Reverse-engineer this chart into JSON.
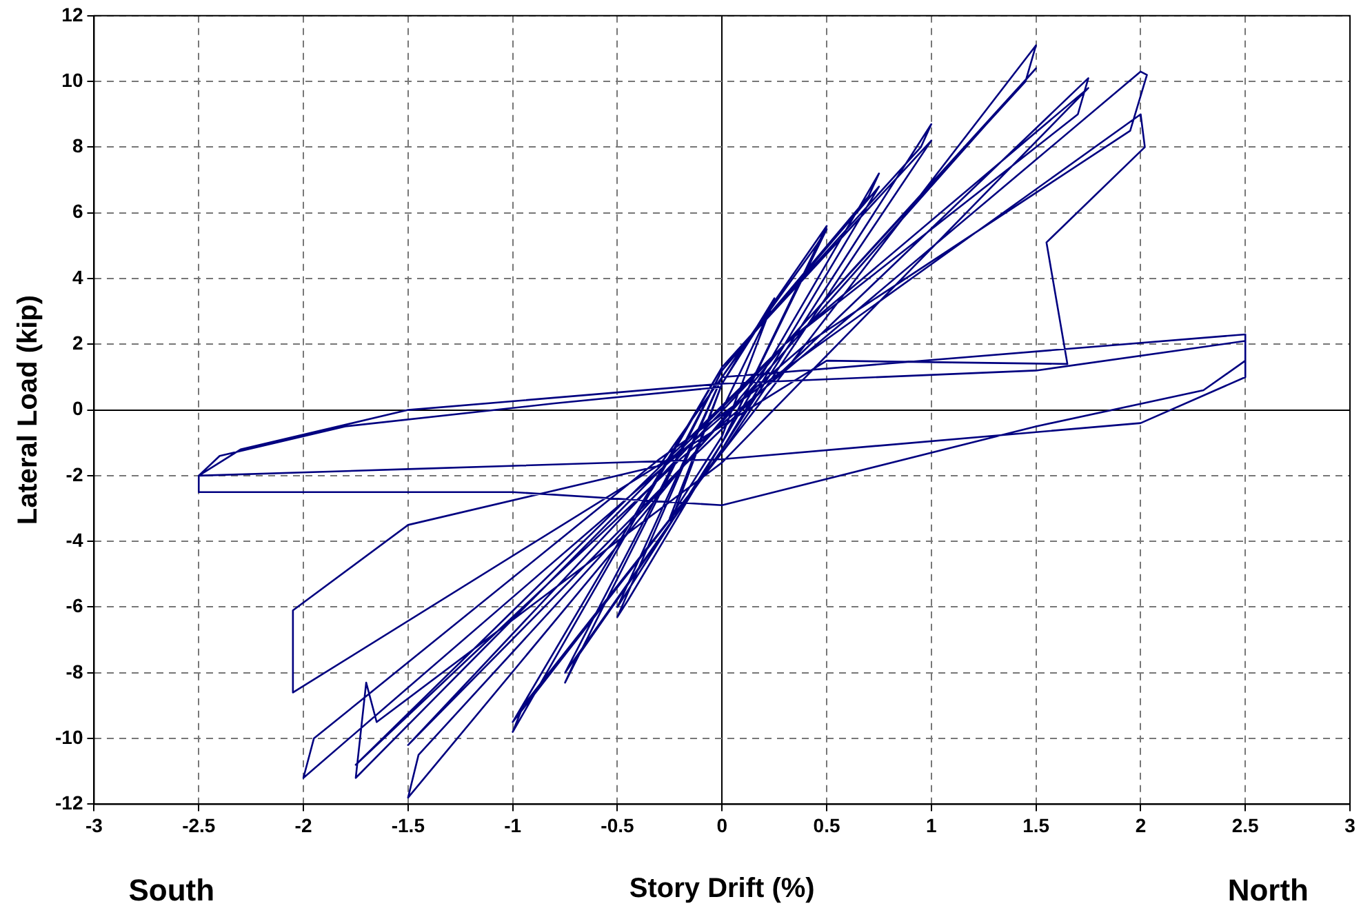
{
  "chart_data": {
    "type": "line",
    "xlabel": "Story Drift (%)",
    "ylabel": "Lateral Load (kip)",
    "annotations": [
      "South",
      "North"
    ],
    "xlim": [
      -3,
      3
    ],
    "xticks": [
      -3,
      -2.5,
      -2,
      -1.5,
      -1,
      -0.5,
      0,
      0.5,
      1,
      1.5,
      2,
      2.5,
      3
    ],
    "ylim": [
      -12,
      12
    ],
    "yticks": [
      -12,
      -10,
      -8,
      -6,
      -4,
      -2,
      0,
      2,
      4,
      6,
      8,
      10,
      12
    ],
    "grid": true,
    "marker": "none",
    "line_style": "solid",
    "legend": false,
    "series": [
      {
        "color": "#000080",
        "x": [
          0,
          0.25,
          0,
          -0.25,
          0,
          0.25,
          0,
          -0.25,
          0,
          0.5,
          0.45,
          0,
          -0.5,
          -0.45,
          0,
          0.5,
          0,
          -0.5,
          0,
          0.75,
          0.7,
          0,
          -0.75,
          -0.7,
          0,
          0.75,
          0,
          -0.75,
          0,
          1.0,
          0.95,
          0,
          -1.0,
          -0.95,
          0,
          1.0,
          0,
          -1.0,
          0,
          1.5,
          1.45,
          0.3,
          -1.5,
          -1.45,
          -0.2,
          1.5,
          0.3,
          -1.5,
          -0.2,
          1.75,
          1.7,
          0.3,
          -1.75,
          -1.7,
          -1.65,
          0,
          1.75,
          0.3,
          -1.75,
          -0.2,
          2.0,
          2.03,
          1.95,
          0.4,
          -2.0,
          -1.95,
          -0.3,
          2.0,
          2.02,
          1.55,
          1.65,
          0.5,
          -2.05,
          -2.05,
          -1.5,
          -0.3,
          0,
          2.5,
          2.5,
          2.3,
          1.5,
          0,
          -1,
          -2.5,
          -2.5,
          -2.3,
          -1.5,
          0,
          1.5,
          2.5,
          2.5,
          2.0,
          0,
          -1.5,
          -2.5,
          -2.4,
          -1.8,
          -0.8,
          0
        ],
        "values": [
          0,
          3.3,
          0.8,
          -3.3,
          -0.8,
          3.4,
          0.8,
          -3.5,
          -1,
          5.5,
          5.0,
          1,
          -6.3,
          -5.8,
          -1,
          5.6,
          1,
          -6.0,
          -1,
          7.2,
          6.5,
          1.2,
          -8.3,
          -7.6,
          -1.2,
          6.8,
          1.2,
          -8.0,
          -1.2,
          8.7,
          8.0,
          1.3,
          -9.8,
          -9.0,
          -1.3,
          8.2,
          1.3,
          -9.5,
          -1.3,
          11.1,
          10,
          2.0,
          -11.8,
          -10.5,
          -1.8,
          10.4,
          2,
          -10.2,
          -1.8,
          10.1,
          9.0,
          2,
          -11.2,
          -8.3,
          -9.5,
          -1.6,
          9.8,
          2,
          -10.8,
          -1.5,
          10.3,
          10.2,
          8.5,
          2,
          -11.2,
          -10.0,
          -1.5,
          9.0,
          8.0,
          5.1,
          1.4,
          1.5,
          -8.6,
          -6.1,
          -3.5,
          -1.7,
          1.0,
          2.3,
          1.5,
          0.6,
          -0.5,
          -2.9,
          -2.5,
          -2.5,
          -2.0,
          -1.2,
          0,
          0.8,
          1.2,
          2.1,
          1.0,
          -0.4,
          -1.5,
          -1.8,
          -2.0,
          -1.4,
          -0.5,
          0.2,
          0.7
        ]
      }
    ]
  }
}
